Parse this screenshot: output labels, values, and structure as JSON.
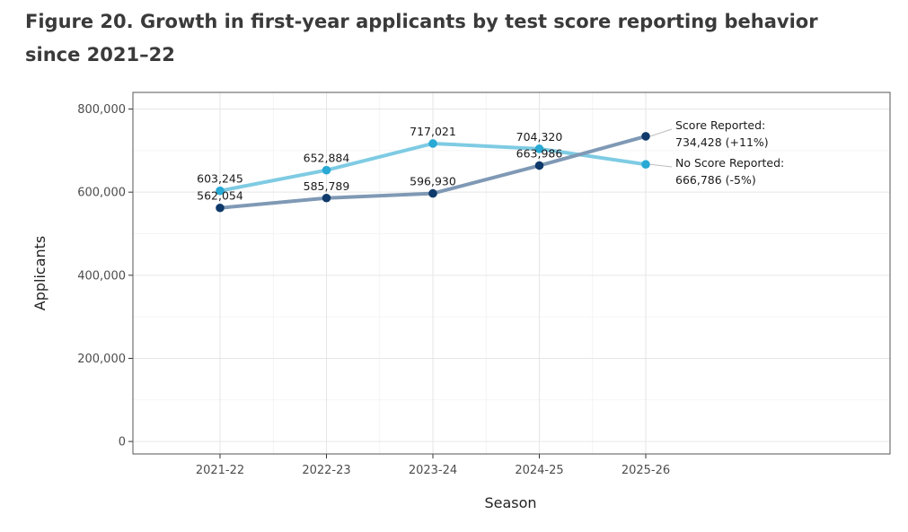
{
  "figure_title": "Figure 20. Growth in first-year applicants by test score reporting behavior since 2021–22",
  "chart_data": {
    "type": "line",
    "title": "Figure 20. Growth in first-year applicants by test score reporting behavior since 2021–22",
    "xlabel": "Season",
    "ylabel": "Applicants",
    "categories": [
      "2021-22",
      "2022-23",
      "2023-24",
      "2024-25",
      "2025-26"
    ],
    "ylim": [
      -30000,
      840000
    ],
    "y_ticks": [
      0,
      200000,
      400000,
      600000,
      800000
    ],
    "y_tick_labels": [
      "0",
      "200,000",
      "400,000",
      "600,000",
      "800,000"
    ],
    "grid": true,
    "legend": "none",
    "series": [
      {
        "name": "No Score Reported",
        "color": "#7ecbe3",
        "point_color": "#29a9d4",
        "values": [
          603245,
          652884,
          717021,
          704320,
          666786
        ],
        "labels": [
          "603,245",
          "652,884",
          "717,021",
          "704,320",
          ""
        ],
        "end_label": [
          "No Score Reported:",
          "666,786 (-5%)"
        ]
      },
      {
        "name": "Score Reported",
        "color": "#7f99b5",
        "point_color": "#0f3a6b",
        "values": [
          562054,
          585789,
          596930,
          663986,
          734428
        ],
        "labels": [
          "562,054",
          "585,789",
          "596,930",
          "663,986",
          ""
        ],
        "end_label": [
          "Score Reported:",
          "734,428 (+11%)"
        ]
      }
    ]
  }
}
